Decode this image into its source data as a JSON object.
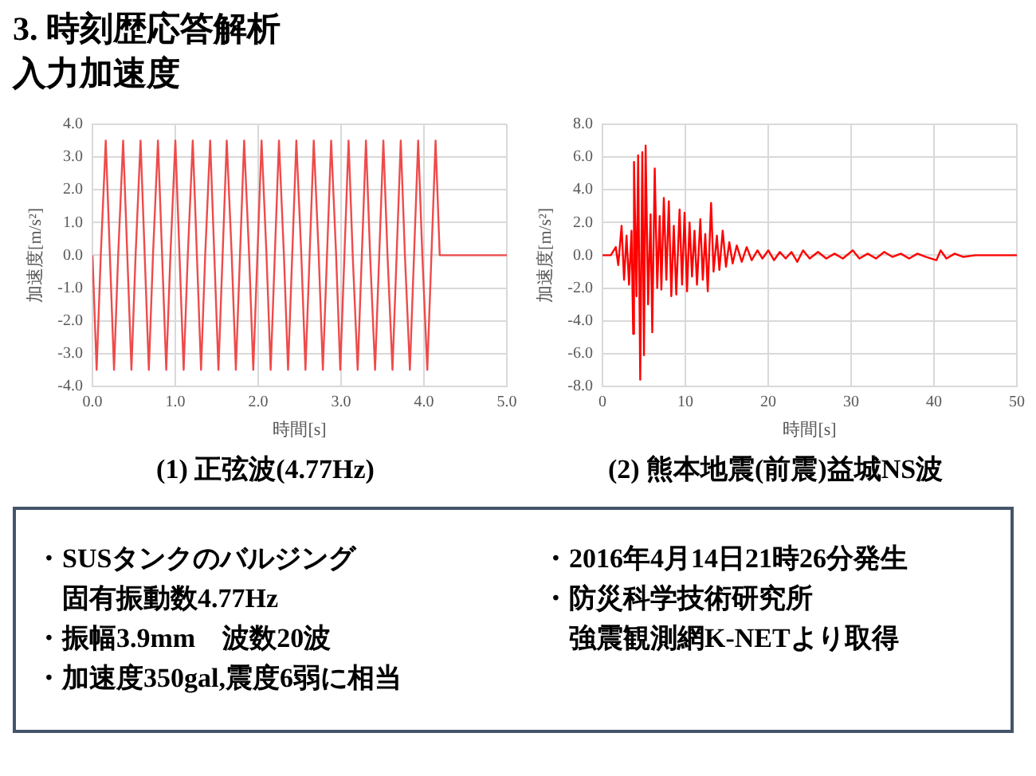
{
  "chart_data": [
    {
      "type": "other",
      "title": "3. 時刻歴応答解析",
      "subtitle": "入力加速度"
    },
    {
      "type": "line",
      "title": "(1) 正弦波(4.77Hz)",
      "xlabel": "時間[s]",
      "ylabel": "加速度[m/s²]",
      "grid": true,
      "marker": "none",
      "xlim": [
        0,
        5
      ],
      "xticks": [
        {
          "value": 0,
          "label": "0.0"
        },
        {
          "value": 1,
          "label": "1.0"
        },
        {
          "value": 2,
          "label": "2.0"
        },
        {
          "value": 3,
          "label": "3.0"
        },
        {
          "value": 4,
          "label": "4.0"
        },
        {
          "value": 5,
          "label": "5.0"
        }
      ],
      "ylim": [
        -4,
        4
      ],
      "yticks": [
        {
          "value": -4,
          "label": "-4.0"
        },
        {
          "value": -3,
          "label": "-3.0"
        },
        {
          "value": -2,
          "label": "-2.0"
        },
        {
          "value": -1,
          "label": "-1.0"
        },
        {
          "value": 0,
          "label": "0.0"
        },
        {
          "value": 1,
          "label": "1.0"
        },
        {
          "value": 2,
          "label": "2.0"
        },
        {
          "value": 3,
          "label": "3.0"
        },
        {
          "value": 4,
          "label": "4.0"
        }
      ],
      "series": [
        {
          "color": "#ee4b4b",
          "x": [
            0,
            0.05,
            0.1,
            0.16,
            0.21,
            0.26,
            0.31,
            0.37,
            0.42,
            0.47,
            0.52,
            0.58,
            0.63,
            0.68,
            0.73,
            0.79,
            0.84,
            0.89,
            0.94,
            1.0,
            1.05,
            1.1,
            1.15,
            1.21,
            1.26,
            1.31,
            1.36,
            1.42,
            1.47,
            1.52,
            1.57,
            1.62,
            1.68,
            1.73,
            1.78,
            1.83,
            1.89,
            1.94,
            1.99,
            2.04,
            2.1,
            2.15,
            2.2,
            2.25,
            2.31,
            2.36,
            2.41,
            2.46,
            2.52,
            2.57,
            2.62,
            2.67,
            2.73,
            2.78,
            2.83,
            2.88,
            2.94,
            2.99,
            3.04,
            3.09,
            3.14,
            3.2,
            3.25,
            3.3,
            3.35,
            3.41,
            3.46,
            3.51,
            3.56,
            3.62,
            3.67,
            3.72,
            3.77,
            3.83,
            3.88,
            3.93,
            3.98,
            4.04,
            4.09,
            4.14,
            4.19,
            5.0
          ],
          "values": [
            0,
            -3.5,
            0,
            3.5,
            0,
            -3.5,
            0,
            3.5,
            0,
            -3.5,
            0,
            3.5,
            0,
            -3.5,
            0,
            3.5,
            0,
            -3.5,
            0,
            3.5,
            0,
            -3.5,
            0,
            3.5,
            0,
            -3.5,
            0,
            3.5,
            0,
            -3.5,
            0,
            3.5,
            0,
            -3.5,
            0,
            3.5,
            0,
            -3.5,
            0,
            3.5,
            0,
            -3.5,
            0,
            3.5,
            0,
            -3.5,
            0,
            3.5,
            0,
            -3.5,
            0,
            3.5,
            0,
            -3.5,
            0,
            3.5,
            0,
            -3.5,
            0,
            3.5,
            0,
            -3.5,
            0,
            3.5,
            0,
            -3.5,
            0,
            3.5,
            0,
            -3.5,
            0,
            3.5,
            0,
            -3.5,
            0,
            3.5,
            0,
            -3.5,
            0,
            3.5,
            0,
            0
          ]
        }
      ]
    },
    {
      "type": "line",
      "title": "(2) 熊本地震(前震)益城NS波",
      "xlabel": "時間[s]",
      "ylabel": "加速度[m/s²]",
      "grid": true,
      "marker": "none",
      "xlim": [
        0,
        50
      ],
      "xticks": [
        0,
        10,
        20,
        30,
        40,
        50
      ],
      "ylim": [
        -8,
        8
      ],
      "yticks": [
        {
          "value": -8,
          "label": "-8.0"
        },
        {
          "value": -6,
          "label": "-6.0"
        },
        {
          "value": -4,
          "label": "-4.0"
        },
        {
          "value": -2,
          "label": "-2.0"
        },
        {
          "value": 0,
          "label": "0.0"
        },
        {
          "value": 2,
          "label": "2.0"
        },
        {
          "value": 4,
          "label": "4.0"
        },
        {
          "value": 6,
          "label": "6.0"
        },
        {
          "value": 8,
          "label": "8.0"
        }
      ],
      "series": [
        {
          "color": "#ff0000",
          "x": [
            0,
            1.0,
            1.6,
            1.9,
            2.3,
            2.6,
            2.9,
            3.2,
            3.5,
            3.7,
            3.8,
            4.1,
            4.3,
            4.55,
            4.8,
            5.0,
            5.2,
            5.5,
            5.8,
            6.0,
            6.3,
            6.6,
            6.9,
            7.1,
            7.4,
            7.7,
            8.0,
            8.3,
            8.6,
            8.9,
            9.3,
            9.6,
            9.9,
            10.2,
            10.5,
            10.8,
            11.1,
            11.4,
            11.8,
            12.1,
            12.4,
            12.7,
            13.1,
            13.4,
            13.8,
            14.1,
            14.5,
            14.9,
            15.3,
            15.7,
            16.2,
            16.8,
            17.4,
            18.0,
            18.7,
            19.3,
            20.0,
            20.7,
            21.4,
            22.1,
            22.8,
            23.5,
            24.2,
            25.0,
            26,
            27,
            28,
            29,
            30.2,
            31,
            32,
            33,
            34,
            35,
            36,
            37,
            38,
            39,
            40.3,
            40.8,
            41.5,
            42.5,
            43.5,
            45,
            50
          ],
          "values": [
            0,
            0,
            0.5,
            -0.6,
            1.8,
            -1.5,
            1.2,
            -1.8,
            1.5,
            -4.8,
            5.7,
            -2.5,
            6.1,
            -7.6,
            6.3,
            -6.1,
            6.7,
            -3.0,
            2.5,
            -4.7,
            5.3,
            -2.0,
            2.4,
            -2.1,
            3.5,
            -1.5,
            3.3,
            -2.5,
            1.8,
            -2.4,
            2.8,
            -1.8,
            2.6,
            -2.2,
            2.0,
            -1.3,
            1.5,
            -1.8,
            2.2,
            -1.5,
            1.3,
            -2.2,
            3.2,
            -1.0,
            1.2,
            -0.9,
            1.5,
            -0.7,
            0.8,
            -0.5,
            0.6,
            -0.4,
            0.5,
            -0.3,
            0.3,
            -0.2,
            0.3,
            -0.3,
            0.2,
            -0.2,
            0.2,
            -0.4,
            0.3,
            -0.2,
            0.2,
            -0.2,
            0.1,
            -0.2,
            0.3,
            -0.2,
            0.1,
            -0.2,
            0.2,
            -0.1,
            0.1,
            -0.2,
            0.1,
            -0.1,
            -0.3,
            0.3,
            -0.2,
            0.1,
            -0.1,
            0,
            0
          ]
        }
      ]
    },
    {
      "type": "other",
      "annotations": [
        "・SUSタンクのバルジング",
        "　固有振動数4.77Hz",
        "・振幅3.9mm　波数20波",
        "・加速度350gal,震度6弱に相当"
      ]
    },
    {
      "type": "other",
      "annotations": [
        "・2016年4月14日21時26分発生",
        "・防災科学技術研究所",
        "　強震観測網K-NETより取得"
      ]
    }
  ]
}
